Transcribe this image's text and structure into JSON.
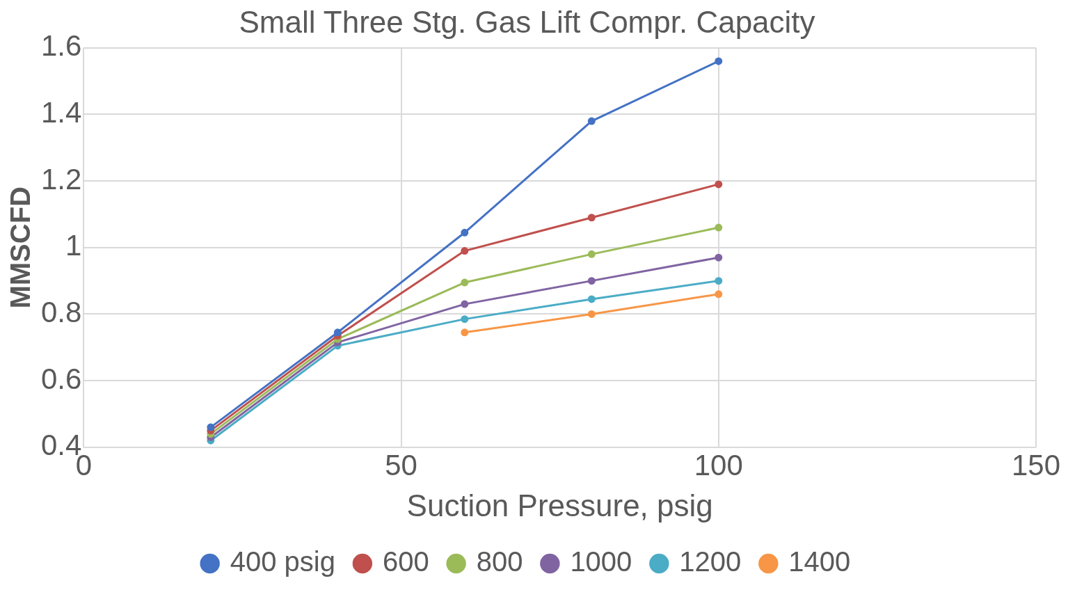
{
  "chart_data": {
    "type": "line",
    "title": "Small Three Stg. Gas Lift Compr. Capacity",
    "xlabel": "Suction Pressure, psig",
    "ylabel": "MMSCFD",
    "x": [
      20,
      40,
      60,
      80,
      100
    ],
    "series": [
      {
        "name": "400 psig",
        "color": "#4472c4",
        "values": [
          0.46,
          0.745,
          1.045,
          1.38,
          1.56
        ]
      },
      {
        "name": "600",
        "color": "#c0504d",
        "values": [
          0.45,
          0.735,
          0.99,
          1.09,
          1.19
        ]
      },
      {
        "name": "800",
        "color": "#9bbb59",
        "values": [
          0.44,
          0.725,
          0.895,
          0.98,
          1.06
        ]
      },
      {
        "name": "1000",
        "color": "#8064a2",
        "values": [
          0.43,
          0.715,
          0.83,
          0.9,
          0.97
        ]
      },
      {
        "name": "1200",
        "color": "#4bacc6",
        "values": [
          0.42,
          0.705,
          0.785,
          0.845,
          0.9
        ]
      },
      {
        "name": "1400",
        "color": "#f79646",
        "values": [
          null,
          null,
          0.745,
          0.8,
          0.86
        ]
      }
    ],
    "xlim": [
      0,
      150
    ],
    "xticks": [
      0,
      50,
      100,
      150
    ],
    "ylim": [
      0.4,
      1.6
    ],
    "yticks": [
      0.4,
      0.6,
      0.8,
      1,
      1.2,
      1.4,
      1.6
    ],
    "grid": true,
    "legend": "bottom",
    "marker": "circle",
    "line_style": "solid"
  }
}
